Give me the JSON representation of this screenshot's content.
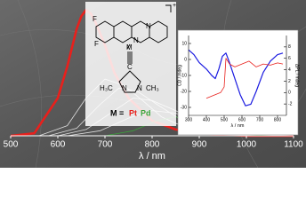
{
  "chart_data": [
    {
      "type": "line",
      "xlabel": "λ / nm",
      "xlim": [
        500,
        1100
      ],
      "ylim": [
        0,
        1.05
      ],
      "xticks": [
        500,
        600,
        700,
        800,
        900,
        1000,
        1100
      ],
      "series": [
        {
          "color": "#e8201c",
          "x": [
            500,
            550,
            600,
            620,
            640,
            650,
            660,
            670,
            680,
            700,
            720,
            750,
            800,
            850,
            900,
            950,
            1000,
            1100
          ],
          "values": [
            0,
            0.02,
            0.3,
            0.55,
            0.85,
            0.95,
            1.0,
            0.97,
            0.9,
            0.72,
            0.5,
            0.3,
            0.12,
            0.05,
            0.02,
            0.01,
            0,
            0
          ]
        },
        {
          "color": "#e0e0e0",
          "x": [
            560,
            620,
            660,
            700,
            740,
            780,
            820,
            880,
            950,
            1050
          ],
          "values": [
            0,
            0.08,
            0.3,
            0.45,
            0.4,
            0.28,
            0.15,
            0.05,
            0.01,
            0
          ]
        },
        {
          "color": "#e0e0e0",
          "x": [
            580,
            640,
            690,
            730,
            770,
            810,
            860,
            920,
            1000,
            1080
          ],
          "values": [
            0,
            0.06,
            0.25,
            0.38,
            0.35,
            0.25,
            0.13,
            0.05,
            0.01,
            0
          ]
        },
        {
          "color": "#e0e0e0",
          "x": [
            600,
            660,
            720,
            760,
            800,
            850,
            900,
            960,
            1040,
            1100
          ],
          "values": [
            0,
            0.05,
            0.2,
            0.3,
            0.28,
            0.2,
            0.1,
            0.04,
            0.01,
            0
          ]
        },
        {
          "color": "#e0e0e0",
          "x": [
            620,
            690,
            750,
            800,
            850,
            900,
            960,
            1030,
            1100
          ],
          "values": [
            0,
            0.04,
            0.14,
            0.2,
            0.18,
            0.11,
            0.05,
            0.01,
            0
          ]
        },
        {
          "color": "#3aa33a",
          "x": [
            700,
            760,
            810,
            850,
            890,
            940,
            1000,
            1060
          ],
          "values": [
            0,
            0.04,
            0.12,
            0.15,
            0.11,
            0.05,
            0.01,
            0
          ]
        }
      ]
    },
    {
      "type": "line",
      "xlabel": "λ / nm",
      "ylabel": "CD / mdeg",
      "y2label": "ΔPL / mdeg",
      "xlim": [
        300,
        850
      ],
      "xticks": [
        300,
        400,
        500,
        600,
        700,
        800
      ],
      "ylim": [
        -35,
        15
      ],
      "yticks": [
        10,
        0,
        -10,
        -20,
        -30
      ],
      "y2lim": [
        -4,
        10
      ],
      "y2ticks": [
        8,
        6,
        4,
        2,
        0,
        -2
      ],
      "series": [
        {
          "color": "#1a1ae0",
          "x": [
            300,
            330,
            360,
            400,
            430,
            450,
            470,
            490,
            510,
            530,
            560,
            590,
            620,
            650,
            680,
            720,
            760,
            800,
            830
          ],
          "values": [
            6,
            3,
            -2,
            -6,
            -10,
            -12,
            -6,
            2,
            4,
            -2,
            -12,
            -22,
            -29,
            -28,
            -20,
            -8,
            -1,
            3,
            4
          ]
        },
        {
          "color": "#e8201c",
          "axis": "y2",
          "x": [
            400,
            440,
            480,
            500,
            510,
            530,
            560,
            600,
            640,
            680,
            720,
            760,
            800,
            830
          ],
          "values": [
            -1,
            -0.5,
            0,
            1,
            6,
            5,
            4.5,
            5,
            5.5,
            4.5,
            5,
            4.8,
            5.2,
            5
          ]
        }
      ]
    }
  ],
  "structure": {
    "atoms": [
      "F",
      "F",
      "N",
      "N",
      "M",
      "C",
      "N",
      "N",
      "H₃C",
      "CH₃"
    ],
    "charge": "+",
    "metal_label": "M =",
    "metals": [
      "Pt",
      "Pd"
    ]
  }
}
